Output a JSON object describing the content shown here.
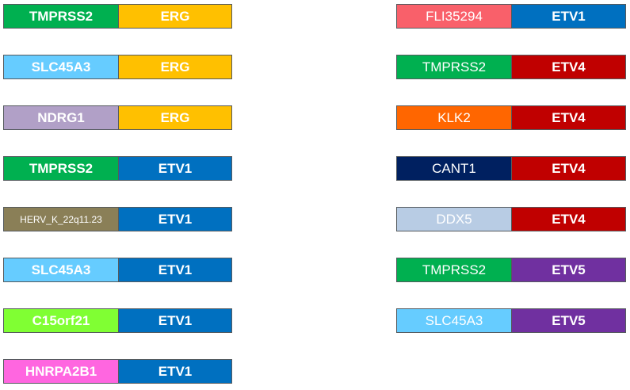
{
  "fusions": [
    {
      "partner": "TMPRSS2",
      "partner_color": "#00B050",
      "partner_bold": true,
      "gene": "ERG",
      "gene_color": "#FFC000",
      "gene_bold": true
    },
    {
      "partner": "SLC45A3",
      "partner_color": "#66CCFF",
      "partner_bold": true,
      "gene": "ERG",
      "gene_color": "#FFC000",
      "gene_bold": true
    },
    {
      "partner": "NDRG1",
      "partner_color": "#B1A0C7",
      "partner_bold": true,
      "gene": "ERG",
      "gene_color": "#FFC000",
      "gene_bold": true
    },
    {
      "partner": "TMPRSS2",
      "partner_color": "#00B050",
      "partner_bold": true,
      "gene": "ETV1",
      "gene_color": "#0070C0",
      "gene_bold": true
    },
    {
      "partner": "HERV_K_22q11.23",
      "partner_color": "#8A7F57",
      "partner_bold": false,
      "partner_small": true,
      "gene": "ETV1",
      "gene_color": "#0070C0",
      "gene_bold": true
    },
    {
      "partner": "SLC45A3",
      "partner_color": "#66CCFF",
      "partner_bold": true,
      "gene": "ETV1",
      "gene_color": "#0070C0",
      "gene_bold": true
    },
    {
      "partner": "C15orf21",
      "partner_color": "#80FF33",
      "partner_bold": true,
      "gene": "ETV1",
      "gene_color": "#0070C0",
      "gene_bold": true
    },
    {
      "partner": "HNRPA2B1",
      "partner_color": "#FF66E0",
      "partner_bold": true,
      "gene": "ETV1",
      "gene_color": "#0070C0",
      "gene_bold": true
    },
    {
      "partner": "FLI35294",
      "partner_color": "#F9606A",
      "partner_bold": false,
      "gene": "ETV1",
      "gene_color": "#0070C0",
      "gene_bold": true
    },
    {
      "partner": "TMPRSS2",
      "partner_color": "#00B050",
      "partner_bold": false,
      "gene": "ETV4",
      "gene_color": "#C00000",
      "gene_bold": true
    },
    {
      "partner": "KLK2",
      "partner_color": "#FF6600",
      "partner_bold": false,
      "gene": "ETV4",
      "gene_color": "#C00000",
      "gene_bold": true
    },
    {
      "partner": "CANT1",
      "partner_color": "#002060",
      "partner_bold": false,
      "gene": "ETV4",
      "gene_color": "#C00000",
      "gene_bold": true
    },
    {
      "partner": "DDX5",
      "partner_color": "#B8CCE4",
      "partner_bold": false,
      "gene": "ETV4",
      "gene_color": "#C00000",
      "gene_bold": true
    },
    {
      "partner": "TMPRSS2",
      "partner_color": "#00B050",
      "partner_bold": false,
      "gene": "ETV5",
      "gene_color": "#7030A0",
      "gene_bold": true
    },
    {
      "partner": "SLC45A3",
      "partner_color": "#66CCFF",
      "partner_bold": false,
      "gene": "ETV5",
      "gene_color": "#7030A0",
      "gene_bold": true
    }
  ]
}
